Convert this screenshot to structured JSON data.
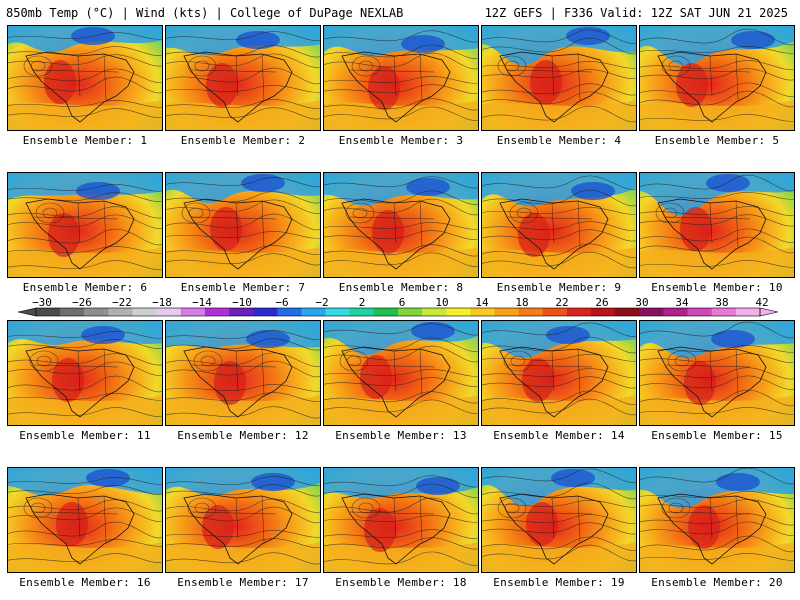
{
  "header": {
    "left": "850mb Temp (°C) | Wind (kts) | College of DuPage NEXLAB",
    "right": "12Z GEFS | F336 Valid: 12Z SAT JUN 21 2025"
  },
  "members": [
    {
      "label": "Ensemble Member: 1"
    },
    {
      "label": "Ensemble Member: 2"
    },
    {
      "label": "Ensemble Member: 3"
    },
    {
      "label": "Ensemble Member: 4"
    },
    {
      "label": "Ensemble Member: 5"
    },
    {
      "label": "Ensemble Member: 6"
    },
    {
      "label": "Ensemble Member: 7"
    },
    {
      "label": "Ensemble Member: 8"
    },
    {
      "label": "Ensemble Member: 9"
    },
    {
      "label": "Ensemble Member: 10"
    },
    {
      "label": "Ensemble Member: 11"
    },
    {
      "label": "Ensemble Member: 12"
    },
    {
      "label": "Ensemble Member: 13"
    },
    {
      "label": "Ensemble Member: 14"
    },
    {
      "label": "Ensemble Member: 15"
    },
    {
      "label": "Ensemble Member: 16"
    },
    {
      "label": "Ensemble Member: 17"
    },
    {
      "label": "Ensemble Member: 18"
    },
    {
      "label": "Ensemble Member: 19"
    },
    {
      "label": "Ensemble Member: 20"
    }
  ],
  "colorbar": {
    "labels": [
      "−30",
      "−26",
      "−22",
      "−18",
      "−14",
      "−10",
      "−6",
      "−2",
      "2",
      "6",
      "10",
      "14",
      "18",
      "22",
      "26",
      "30",
      "34",
      "38",
      "42"
    ],
    "colors": [
      "#4b4b4b",
      "#6e6e6e",
      "#8f8f8f",
      "#b0b0b0",
      "#cfcfcf",
      "#e6c8f0",
      "#d47ce8",
      "#b02fd6",
      "#6a1fbf",
      "#2b2bd0",
      "#1e6ee8",
      "#2aa7f0",
      "#38d8e8",
      "#1fd3a0",
      "#1fc050",
      "#7ed63a",
      "#c8e83a",
      "#f5f02a",
      "#f8c81e",
      "#f7a21a",
      "#f47c18",
      "#ee5016",
      "#d9261a",
      "#b8141a",
      "#8c0e16",
      "#8a1060",
      "#b0208e",
      "#d048b8",
      "#e87ad6",
      "#f4b0ea"
    ]
  }
}
